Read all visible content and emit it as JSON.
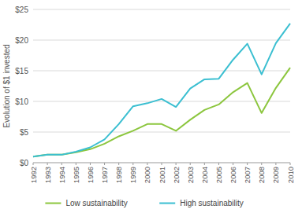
{
  "chart_data": {
    "type": "line",
    "y_label": "Evolution of $1 invested",
    "categories": [
      "1992",
      "1993",
      "1994",
      "1995",
      "1996",
      "1997",
      "1998",
      "1999",
      "2000",
      "2001",
      "2002",
      "2003",
      "2004",
      "2005",
      "2006",
      "2007",
      "2008",
      "2009",
      "2010"
    ],
    "series": [
      {
        "name": "Low sustainability",
        "color": "#8cc63e",
        "values": [
          1.0,
          1.3,
          1.3,
          1.7,
          2.2,
          3.1,
          4.3,
          5.2,
          6.3,
          6.3,
          5.2,
          7.0,
          8.6,
          9.5,
          11.5,
          13.0,
          8.1,
          12.2,
          15.5
        ]
      },
      {
        "name": "High sustainability",
        "color": "#3bbfd1",
        "values": [
          1.0,
          1.3,
          1.3,
          1.8,
          2.5,
          3.8,
          6.3,
          9.2,
          9.7,
          10.4,
          9.1,
          12.1,
          13.6,
          13.7,
          16.8,
          19.4,
          14.4,
          19.5,
          22.7
        ]
      }
    ],
    "ylim": [
      0,
      25
    ],
    "yticks": [
      {
        "value": 0,
        "label": "$0"
      },
      {
        "value": 5,
        "label": "$5"
      },
      {
        "value": 10,
        "label": "$10"
      },
      {
        "value": 15,
        "label": "$15"
      },
      {
        "value": 20,
        "label": "$20"
      },
      {
        "value": 25,
        "label": "$25"
      }
    ],
    "grid": true,
    "legend": "bottom"
  }
}
